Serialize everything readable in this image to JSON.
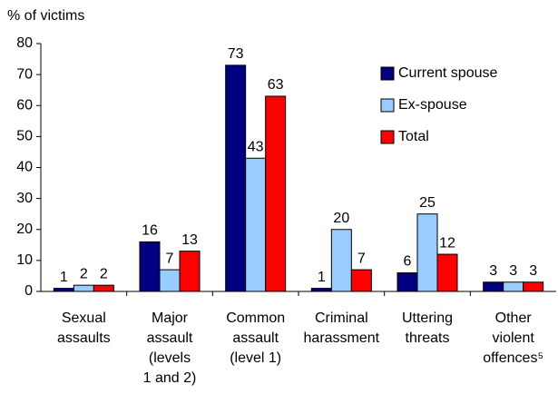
{
  "chart_data": {
    "type": "bar",
    "y_label": "% of victims",
    "categories": [
      [
        "Sexual",
        "assaults"
      ],
      [
        "Major",
        "assault",
        "(levels",
        "1 and 2)"
      ],
      [
        "Common",
        "assault",
        "(level 1)"
      ],
      [
        "Criminal",
        "harassment"
      ],
      [
        "Uttering",
        "threats"
      ],
      [
        "Other",
        "violent",
        "offences⁵"
      ]
    ],
    "series": [
      {
        "name": "Current spouse",
        "color": "#000080",
        "values": [
          1,
          16,
          73,
          1,
          6,
          3
        ]
      },
      {
        "name": "Ex-spouse",
        "color": "#99ccff",
        "values": [
          2,
          7,
          43,
          20,
          25,
          3
        ]
      },
      {
        "name": "Total",
        "color": "#ff0000",
        "values": [
          2,
          13,
          63,
          7,
          12,
          3
        ]
      }
    ],
    "ylim": [
      0,
      80
    ],
    "yticks": [
      0,
      10,
      20,
      30,
      40,
      50,
      60,
      70,
      80
    ],
    "legend": "upper right",
    "grid": false
  }
}
